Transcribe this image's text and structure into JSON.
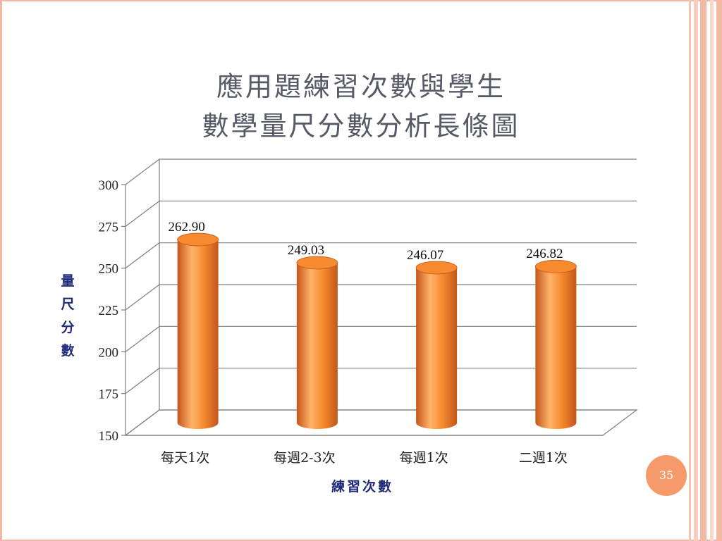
{
  "slide": {
    "title_line1": "應用題練習次數與學生",
    "title_line2": "數學量尺分數分析長條圖",
    "page_number": "35"
  },
  "colors": {
    "bar": "#f58a2e",
    "bar_dark": "#c4561a",
    "bar_light": "#ffb46a",
    "frame_accent": "#f4b9a4",
    "page_badge": "#f59a6b",
    "axis_title": "#1f2a7a",
    "title": "#555a66"
  },
  "chart_data": {
    "type": "bar",
    "style": "3d-cylinder",
    "categories": [
      "每天1次",
      "每週2-3次",
      "每週1次",
      "二週1次"
    ],
    "values": [
      262.9,
      249.03,
      246.07,
      246.82
    ],
    "data_labels": [
      "262.90",
      "249.03",
      "246.07",
      "246.82"
    ],
    "ylim": [
      150,
      300
    ],
    "yticks": [
      150,
      175,
      200,
      225,
      250,
      275,
      300
    ],
    "ylabel": "量尺分數",
    "xlabel": "練習次數",
    "grid": true,
    "legend": "none"
  }
}
